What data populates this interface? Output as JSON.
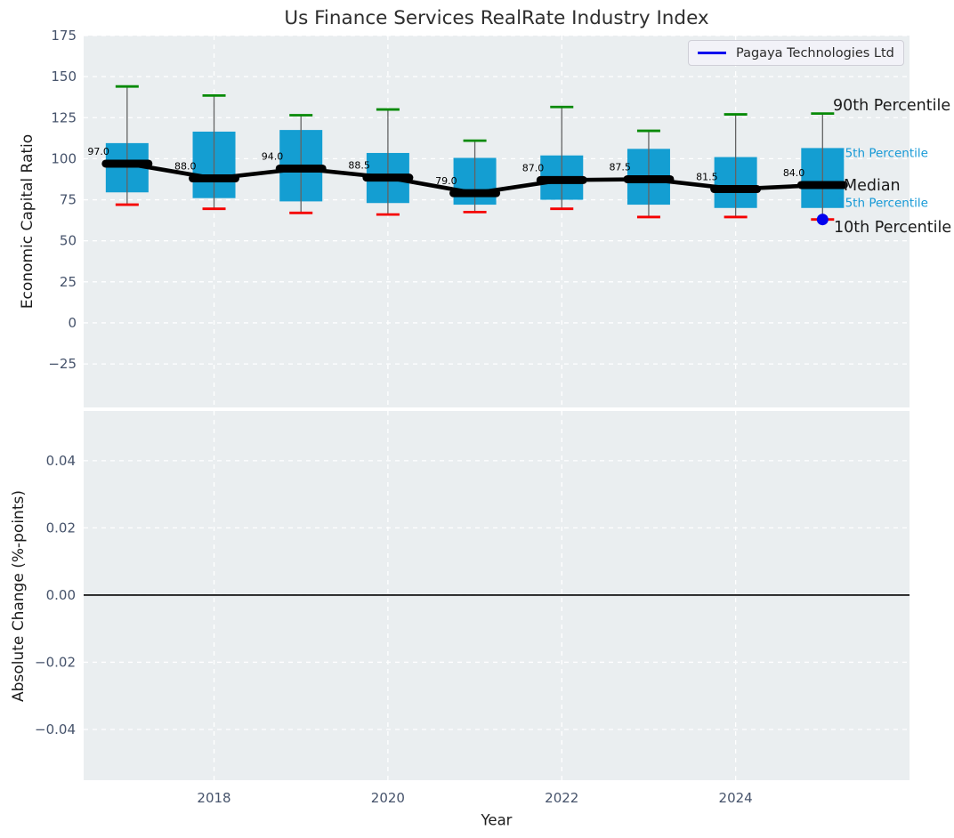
{
  "title": "Us Finance Services RealRate Industry Index",
  "legend": {
    "label": "Pagaya Technologies Ltd",
    "line_color": "#0000ee"
  },
  "colors": {
    "panel_bg": "#eaeef0",
    "grid": "#ffffff",
    "box_fill": "#149ed2",
    "whisker": "#636363",
    "cap_high": "#078a07",
    "cap_low": "#f50000",
    "median": "#000000",
    "point": "#0202ee",
    "annotation_small": "#1699d6",
    "annotation_large": "#1a1a1a",
    "tick": "#46536b",
    "zero_line": "#000000"
  },
  "chart_data": [
    {
      "type": "boxplot",
      "panel": "top",
      "ylabel": "Economic Capital Ratio",
      "ylim": [
        -51.5,
        175
      ],
      "yticks": [
        175,
        150,
        125,
        100,
        75,
        50,
        25,
        0,
        -25
      ],
      "ytick_labels": [
        "175",
        "150",
        "125",
        "100",
        "75",
        "50",
        "25",
        "0",
        "−25"
      ],
      "xlim": [
        2016.5,
        2026
      ],
      "xticks": [
        2018,
        2020,
        2022,
        2024
      ],
      "xtick_labels": [
        "2018",
        "2020",
        "2022",
        "2024"
      ],
      "grid": "white-dashed",
      "legend_position": "upper-right",
      "boxes": [
        {
          "year": 2017,
          "p10": 72,
          "p25": 79.5,
          "median": 97.0,
          "p75": 109.5,
          "p90": 144,
          "median_label": "97.0"
        },
        {
          "year": 2018,
          "p10": 69.5,
          "p25": 76,
          "median": 88.0,
          "p75": 116.5,
          "p90": 138.5,
          "median_label": "88.0"
        },
        {
          "year": 2019,
          "p10": 67,
          "p25": 74,
          "median": 94.0,
          "p75": 117.5,
          "p90": 126.5,
          "median_label": "94.0"
        },
        {
          "year": 2020,
          "p10": 66,
          "p25": 73,
          "median": 88.5,
          "p75": 103.5,
          "p90": 130,
          "median_label": "88.5"
        },
        {
          "year": 2021,
          "p10": 67.5,
          "p25": 72,
          "median": 79.0,
          "p75": 100.5,
          "p90": 111,
          "median_label": "79.0"
        },
        {
          "year": 2022,
          "p10": 69.5,
          "p25": 75,
          "median": 87.0,
          "p75": 102,
          "p90": 131.5,
          "median_label": "87.0"
        },
        {
          "year": 2023,
          "p10": 64.5,
          "p25": 72,
          "median": 87.5,
          "p75": 106,
          "p90": 117,
          "median_label": "87.5"
        },
        {
          "year": 2024,
          "p10": 64.5,
          "p25": 70,
          "median": 81.5,
          "p75": 101,
          "p90": 127,
          "median_label": "81.5"
        },
        {
          "year": 2025,
          "p10": 63,
          "p25": 70,
          "median": 84.0,
          "p75": 106.5,
          "p90": 127.5,
          "median_label": "84.0"
        }
      ],
      "overlay_point": {
        "series": "Pagaya Technologies Ltd",
        "x": 2025,
        "y": 63
      },
      "annotations": [
        {
          "label": "90th Percentile",
          "value": 132.7,
          "style": "large"
        },
        {
          "label": "75th Percentile",
          "value": 103.5,
          "style": "small"
        },
        {
          "label": "Median",
          "value": 84.0,
          "style": "large"
        },
        {
          "label": "25th Percentile",
          "value": 73.1,
          "style": "small"
        },
        {
          "label": "10th Percentile",
          "value": 58.5,
          "style": "large"
        }
      ]
    },
    {
      "type": "line",
      "panel": "bottom",
      "ylabel": "Absolute Change (%-points)",
      "xlabel": "Year",
      "ylim": [
        -0.0551,
        0.0548
      ],
      "yticks": [
        0.04,
        0.02,
        0.0,
        -0.02,
        -0.04
      ],
      "ytick_labels": [
        "0.04",
        "0.02",
        "0.00",
        "−0.02",
        "−0.04"
      ],
      "xticks": [
        2018,
        2020,
        2022,
        2024
      ],
      "xtick_labels": [
        "2018",
        "2020",
        "2022",
        "2024"
      ],
      "zero_line": 0.0,
      "series": []
    }
  ]
}
